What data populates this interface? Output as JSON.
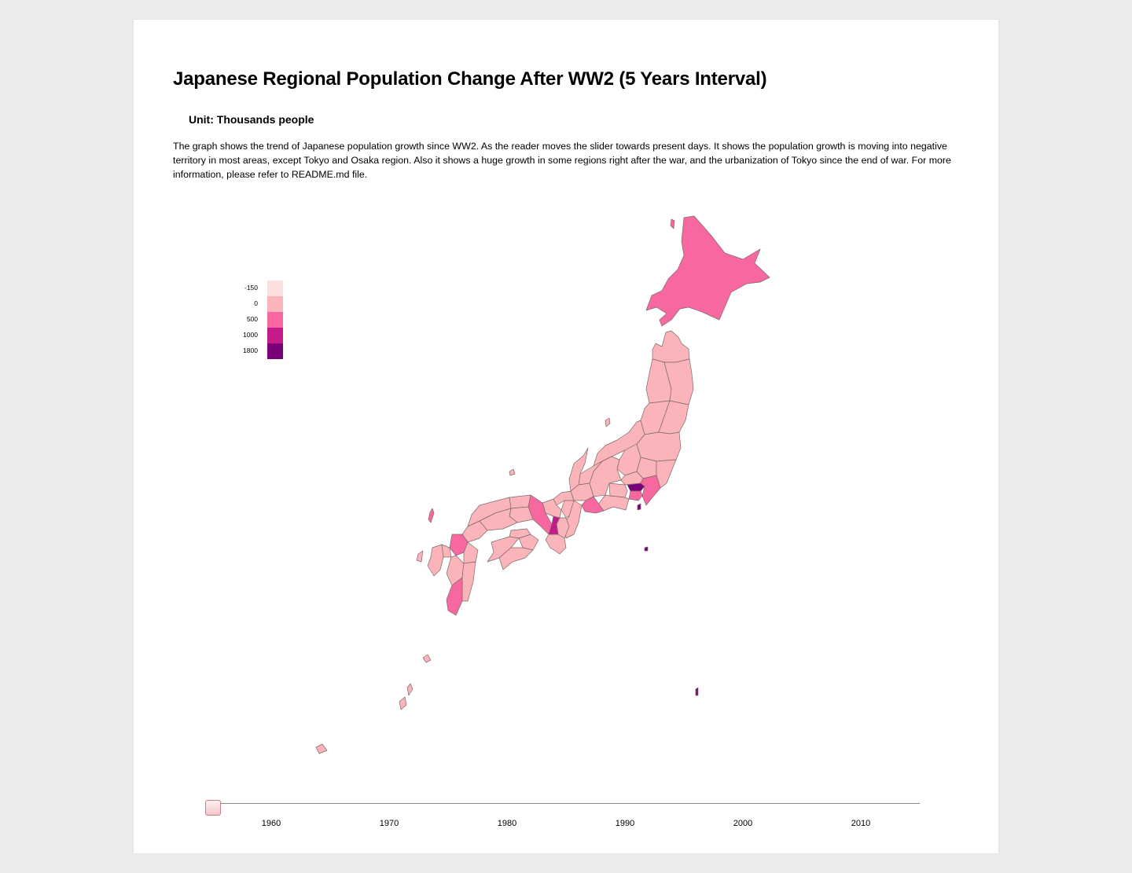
{
  "page": {
    "title": "Japanese Regional Population Change After WW2 (5 Years Interval)",
    "unit": "Unit: Thousands people",
    "description": "The graph shows the trend of Japanese population growth since WW2. As the reader moves the slider towards present days. It shows the population growth is moving into negative territory in most areas, except Tokyo and Osaka region. Also it shows a huge growth in some regions right after the war, and the urbanization of Tokyo since the end of war. For more information, please refer to README.md file."
  },
  "legend": {
    "items": [
      {
        "label": "-150",
        "color": "#fde0dd"
      },
      {
        "label": "0",
        "color": "#fbb4b9"
      },
      {
        "label": "500",
        "color": "#f768a1"
      },
      {
        "label": "1000",
        "color": "#c51b8a"
      },
      {
        "label": "1800",
        "color": "#7a0177"
      }
    ]
  },
  "slider": {
    "min_year": 1955,
    "max_year": 2015,
    "current_year": 1955,
    "ticks": [
      "1960",
      "1970",
      "1980",
      "1990",
      "2000",
      "2010"
    ]
  },
  "colors": {
    "background": "#ececec",
    "card": "#ffffff",
    "border": "#7a6a6a"
  }
}
